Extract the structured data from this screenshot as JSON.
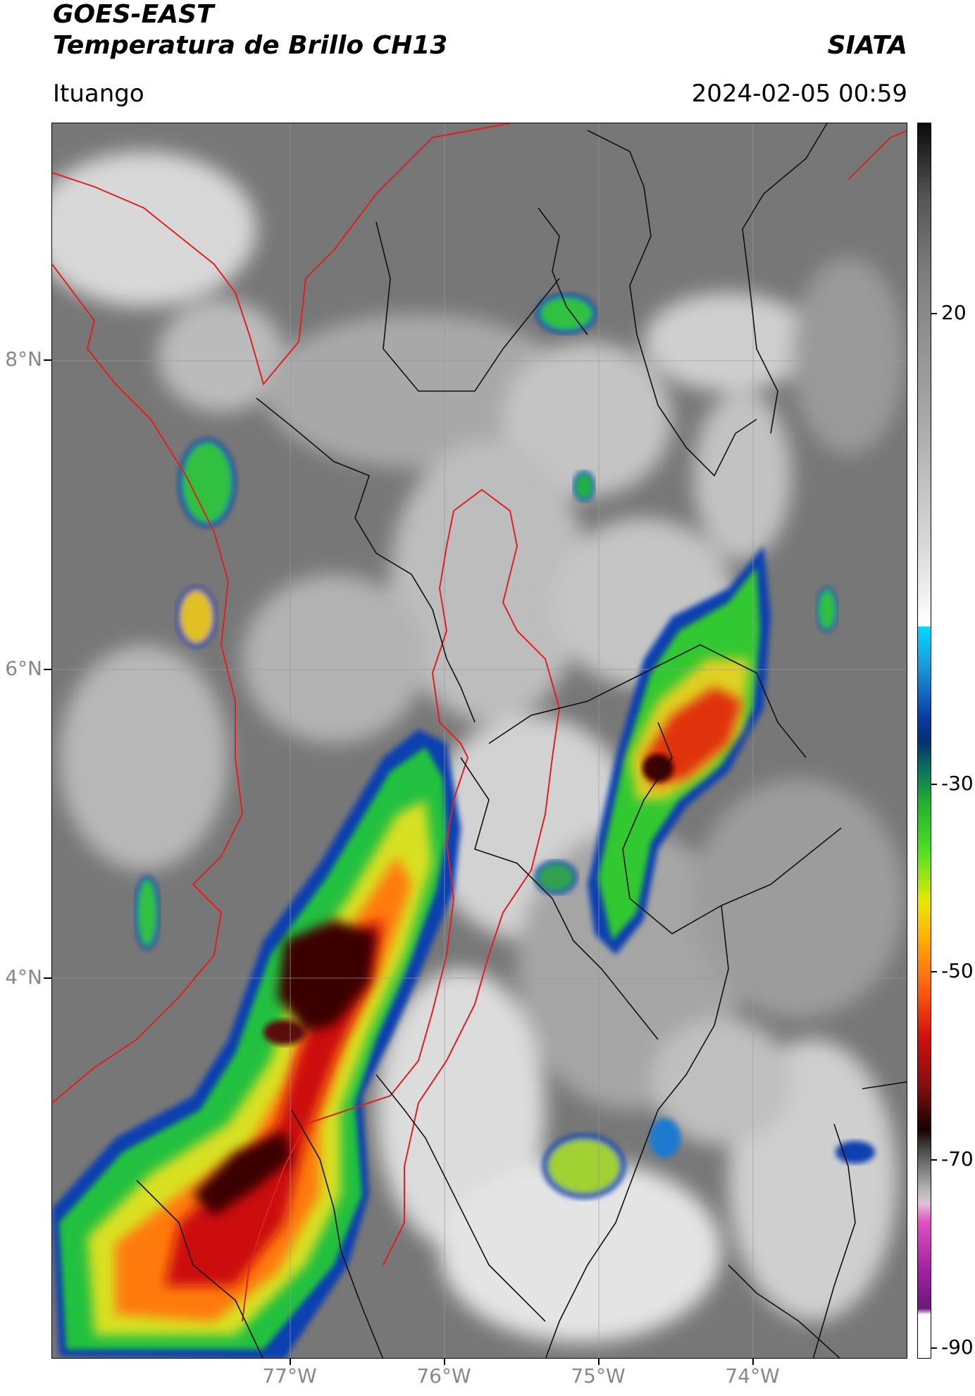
{
  "header": {
    "title": "GOES-EAST",
    "subtitle": "Temperatura de Brillo CH13",
    "brand": "SIATA",
    "location": "Ituango",
    "datetime": "2024-02-05 00:59"
  },
  "map": {
    "lat_labels": [
      "8°N",
      "6°N",
      "4°N"
    ],
    "lon_labels": [
      "77°W",
      "76°W",
      "75°W",
      "74°W"
    ]
  },
  "colorbar": {
    "tick_labels": [
      "20",
      "-30",
      "-50",
      "-70",
      "-90"
    ],
    "colors": {
      "warm_gray": "#9a9a9a",
      "cold_blue": "#00c8ff",
      "green": "#20d020",
      "yellow": "#f0e000",
      "orange": "#ff8000",
      "red": "#d00000",
      "dark_red": "#400000",
      "magenta": "#e040c0"
    }
  }
}
